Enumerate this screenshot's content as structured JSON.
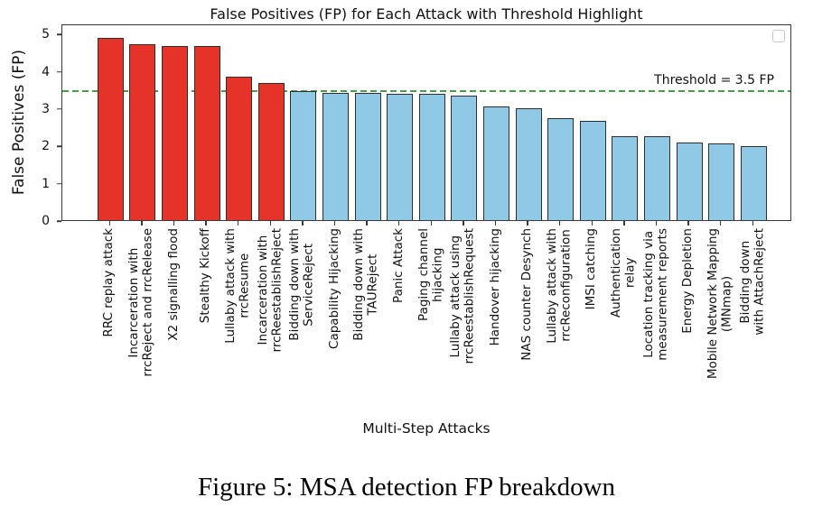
{
  "figure": {
    "caption": "Figure 5: MSA detection FP breakdown"
  },
  "chart_data": {
    "type": "bar",
    "title": "False Positives (FP) for Each Attack with Threshold Highlight",
    "xlabel": "Multi-Step Attacks",
    "ylabel": "False Positives (FP)",
    "ylim": [
      0,
      5.27
    ],
    "yticks": [
      "0",
      "1",
      "2",
      "3",
      "4",
      "5"
    ],
    "grid": false,
    "legend": {
      "visible": true,
      "entries": [],
      "position": "upper right"
    },
    "threshold": {
      "value": 3.5,
      "label": "Threshold = 3.5 FP",
      "color": "#4a9a4a",
      "style": "dashed"
    },
    "colors": {
      "above_threshold": "#e5332a",
      "below_threshold": "#8fc9e6",
      "bar_edge": "#2e2e2e"
    },
    "categories": [
      "RRC replay attack",
      "Incarceration with\nrrcReject and rrcRelease",
      "X2 signalling flood",
      "Stealthy Kickoff",
      "Lullaby attack with\nrrcResume",
      "Incarceration with\nrrcReestablishReject",
      "Bidding down with\nServiceReject",
      "Capability Hijacking",
      "Bidding down with\nTAUReject",
      "Panic Attack",
      "Paging channel\nhijacking",
      "Lullaby attack using\nrrcReestablishRequest",
      "Handover hijacking",
      "NAS counter Desynch",
      "Lullaby attack with\nrrcReconfiguration",
      "IMSI catching",
      "Authentication\nrelay",
      "Location tracking via\nmeasurement reports",
      "Energy Depletion",
      "Mobile Network Mapping\n(MNmap)",
      "Bidding down\nwith AttachReject"
    ],
    "values": [
      4.94,
      4.77,
      4.72,
      4.7,
      3.88,
      3.7,
      3.49,
      3.45,
      3.43,
      3.42,
      3.41,
      3.37,
      3.08,
      3.02,
      2.76,
      2.69,
      2.28,
      2.28,
      2.09,
      2.07,
      2.01
    ]
  }
}
